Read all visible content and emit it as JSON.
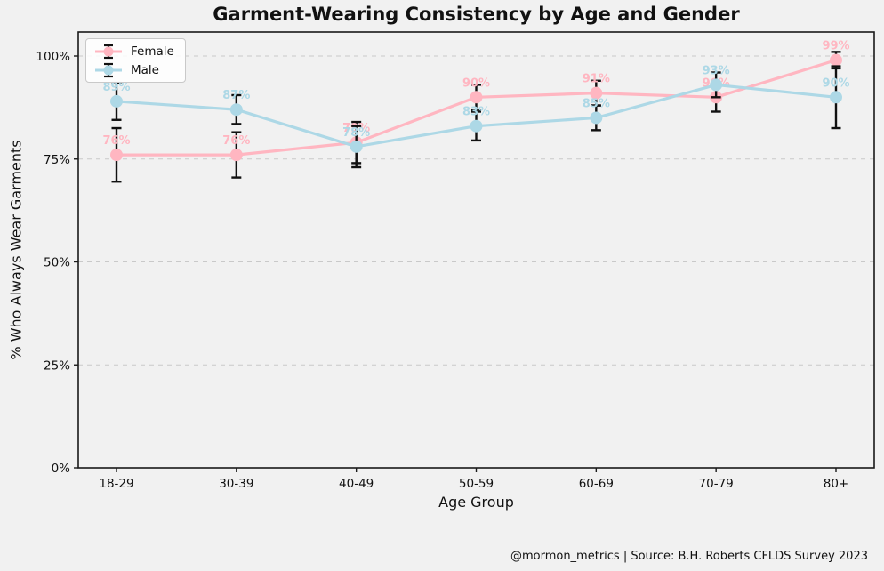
{
  "title": "Garment-Wearing Consistency by Age and Gender",
  "footer": "@mormon_metrics | Source: B.H. Roberts CFLDS Survey 2023",
  "colors": {
    "figure_background": "#f1f1f1",
    "grid": "#c9c9c9",
    "spine": "#1a1a1a",
    "text": "#111111",
    "error_bar": "#111111",
    "female": "#ffb6c1",
    "male": "#add8e6"
  },
  "chart_data": {
    "type": "line",
    "title": "Garment-Wearing Consistency by Age and Gender",
    "xlabel": "Age Group",
    "ylabel": "% Who Always Wear Garments",
    "categories": [
      "18-29",
      "30-39",
      "40-49",
      "50-59",
      "60-69",
      "70-79",
      "80+"
    ],
    "yticks": [
      0,
      25,
      50,
      75,
      100
    ],
    "ytick_labels": [
      "0%",
      "25%",
      "50%",
      "75%",
      "100%"
    ],
    "ylim": [
      0,
      106
    ],
    "grid": "horizontal-dashed",
    "marker": "circle",
    "legend_position": "upper-left",
    "series": [
      {
        "name": "Female",
        "color": "#ffb6c1",
        "values": [
          76,
          76,
          79,
          90,
          91,
          90,
          99
        ],
        "point_labels": [
          "76%",
          "76%",
          "79%",
          "90%",
          "91%",
          "90%",
          "99%"
        ],
        "error": [
          6.5,
          5.5,
          5,
          3,
          3,
          3.5,
          2
        ]
      },
      {
        "name": "Male",
        "color": "#add8e6",
        "values": [
          89,
          87,
          78,
          83,
          85,
          93,
          90
        ],
        "point_labels": [
          "89%",
          "87%",
          "78%",
          "83%",
          "85%",
          "93%",
          "90%"
        ],
        "error": [
          4.5,
          3.5,
          5,
          3.5,
          3,
          3,
          7.5
        ]
      }
    ]
  }
}
